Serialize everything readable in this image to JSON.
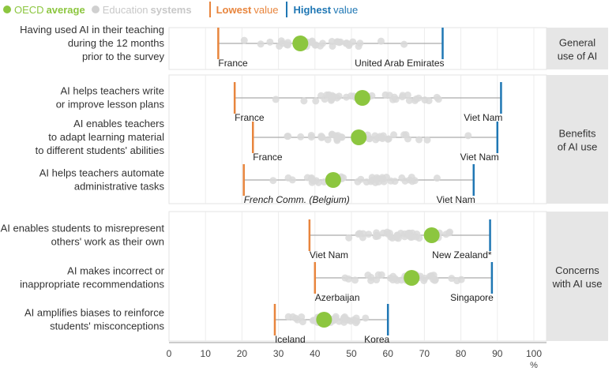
{
  "legend": {
    "oecd_prefix": "OECD",
    "oecd_bold": "average",
    "systems_prefix": "Education",
    "systems_bold": "systems",
    "lowest_bold": "Lowest",
    "lowest_suffix": "value",
    "highest_bold": "Highest",
    "highest_suffix": "value"
  },
  "colors": {
    "oecd": "#8cc63f",
    "systems": "#d9d9d9",
    "lowest": "#e8853d",
    "highest": "#1f77b4",
    "panel": "#e6e6e6"
  },
  "chart_data": {
    "type": "dot-range",
    "xlabel": "%",
    "xlim": [
      0,
      100
    ],
    "xticks": [
      "0",
      "10",
      "20",
      "30",
      "40",
      "50",
      "60",
      "70",
      "80",
      "90",
      "100"
    ],
    "grid": true,
    "groups": [
      {
        "label": [
          "General",
          "use of AI"
        ],
        "rows": [
          0
        ]
      },
      {
        "label": [
          "Benefits",
          "of AI use"
        ],
        "rows": [
          1,
          2,
          3
        ]
      },
      {
        "label": [
          "Concerns",
          "with AI use"
        ],
        "rows": [
          4,
          5,
          6
        ]
      }
    ],
    "rows": [
      {
        "label": [
          "Having used AI in their teaching",
          "during the 12 months",
          "prior to the survey"
        ],
        "low": 13.5,
        "low_name": "France",
        "high": 75,
        "high_name": "United Arab Emirates",
        "oecd": 36
      },
      {
        "label": [
          "AI helps teachers write",
          "or improve lesson plans"
        ],
        "low": 18,
        "low_name": "France",
        "high": 91,
        "high_name": "Viet Nam",
        "oecd": 53
      },
      {
        "label": [
          "AI enables teachers",
          "to adapt learning material",
          "to different students' abilities"
        ],
        "low": 23,
        "low_name": "France",
        "high": 90,
        "high_name": "Viet Nam",
        "oecd": 52
      },
      {
        "label": [
          "AI helps teachers automate",
          "administrative tasks"
        ],
        "low": 20.5,
        "low_name": "French Comm. (Belgium)",
        "high": 83.5,
        "high_name": "Viet Nam",
        "oecd": 45,
        "low_italic": true
      },
      {
        "label": [
          "AI enables students to misrepresent",
          "others' work as their own"
        ],
        "low": 38.5,
        "low_name": "Viet Nam",
        "high": 88,
        "high_name": "New Zealand*",
        "oecd": 72
      },
      {
        "label": [
          "AI makes incorrect or",
          "inappropriate recommendations"
        ],
        "low": 40,
        "low_name": "Azerbaijan",
        "high": 88.5,
        "high_name": "Singapore",
        "oecd": 66.5
      },
      {
        "label": [
          "AI amplifies biases to reinforce",
          "students' misconceptions"
        ],
        "low": 29,
        "low_name": "Iceland",
        "high": 60,
        "high_name": "Korea",
        "oecd": 42.5
      }
    ]
  }
}
